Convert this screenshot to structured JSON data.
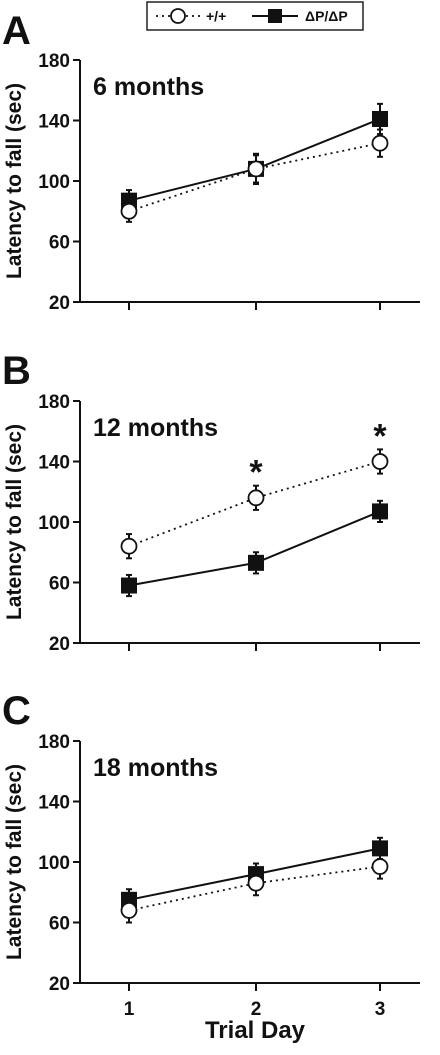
{
  "legend": {
    "entries": [
      {
        "name": "+/+",
        "marker": "open-circle",
        "line": "dotted"
      },
      {
        "name": "ΔP/ΔP",
        "marker": "filled-square",
        "line": "solid"
      }
    ]
  },
  "chart_data": [
    {
      "type": "line",
      "panel": "A",
      "title": "6 months",
      "ylabel": "Latency to fall (sec)",
      "ylim": [
        20,
        180
      ],
      "yticks": [
        20,
        60,
        100,
        140,
        180
      ],
      "categories": [
        "1",
        "2",
        "3"
      ],
      "series": [
        {
          "name": "+/+",
          "values": [
            80,
            108,
            125
          ],
          "errors": [
            7,
            9,
            9
          ],
          "significant": [
            false,
            false,
            false
          ]
        },
        {
          "name": "ΔP/ΔP",
          "values": [
            87,
            108,
            141
          ],
          "errors": [
            7,
            10,
            10
          ]
        }
      ]
    },
    {
      "type": "line",
      "panel": "B",
      "title": "12 months",
      "ylabel": "Latency to fall (sec)",
      "ylim": [
        20,
        180
      ],
      "yticks": [
        20,
        60,
        100,
        140,
        180
      ],
      "categories": [
        "1",
        "2",
        "3"
      ],
      "series": [
        {
          "name": "+/+",
          "values": [
            84,
            116,
            140
          ],
          "errors": [
            8,
            8,
            8
          ],
          "significant": [
            false,
            true,
            true
          ]
        },
        {
          "name": "ΔP/ΔP",
          "values": [
            58,
            73,
            107
          ],
          "errors": [
            7,
            7,
            7
          ]
        }
      ],
      "significance_marker": "*"
    },
    {
      "type": "line",
      "panel": "C",
      "title": "18 months",
      "ylabel": "Latency to fall (sec)",
      "ylim": [
        20,
        180
      ],
      "yticks": [
        20,
        60,
        100,
        140,
        180
      ],
      "xlabel": "Trial Day",
      "categories": [
        "1",
        "2",
        "3"
      ],
      "series": [
        {
          "name": "+/+",
          "values": [
            68,
            86,
            97
          ],
          "errors": [
            8,
            8,
            8
          ],
          "significant": [
            false,
            false,
            false
          ]
        },
        {
          "name": "ΔP/ΔP",
          "values": [
            75,
            92,
            109
          ],
          "errors": [
            7,
            7,
            7
          ]
        }
      ]
    }
  ]
}
